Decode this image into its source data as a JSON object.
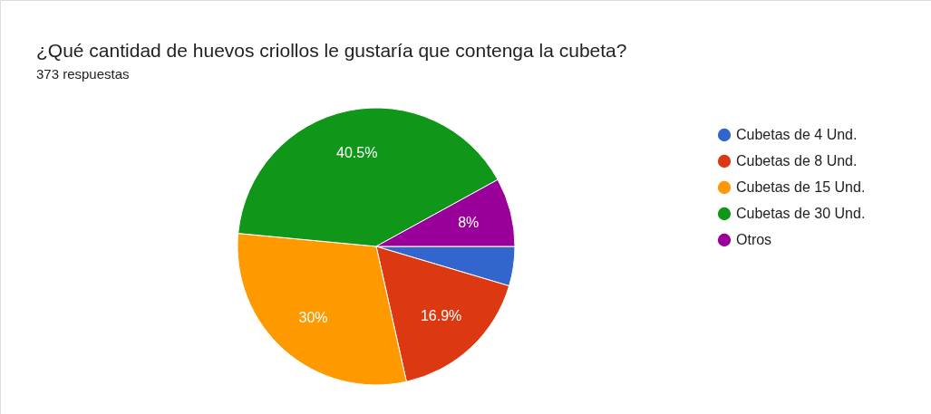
{
  "chart_data": {
    "type": "pie",
    "title": "¿Qué cantidad de huevos criollos le gustaría que contenga la cubeta?",
    "subtitle": "373 respuestas",
    "categories": [
      "Cubetas de 4 Und.",
      "Cubetas de 8 Und.",
      "Cubetas de 15 Und.",
      "Cubetas de 30 Und.",
      "Otros"
    ],
    "values": [
      4.6,
      16.9,
      30,
      40.5,
      8
    ],
    "colors": [
      "#3366cc",
      "#dc3912",
      "#ff9900",
      "#109618",
      "#990099"
    ],
    "value_labels": [
      null,
      "16.9%",
      "30%",
      "40.5%",
      "8%"
    ],
    "legend": "right"
  }
}
